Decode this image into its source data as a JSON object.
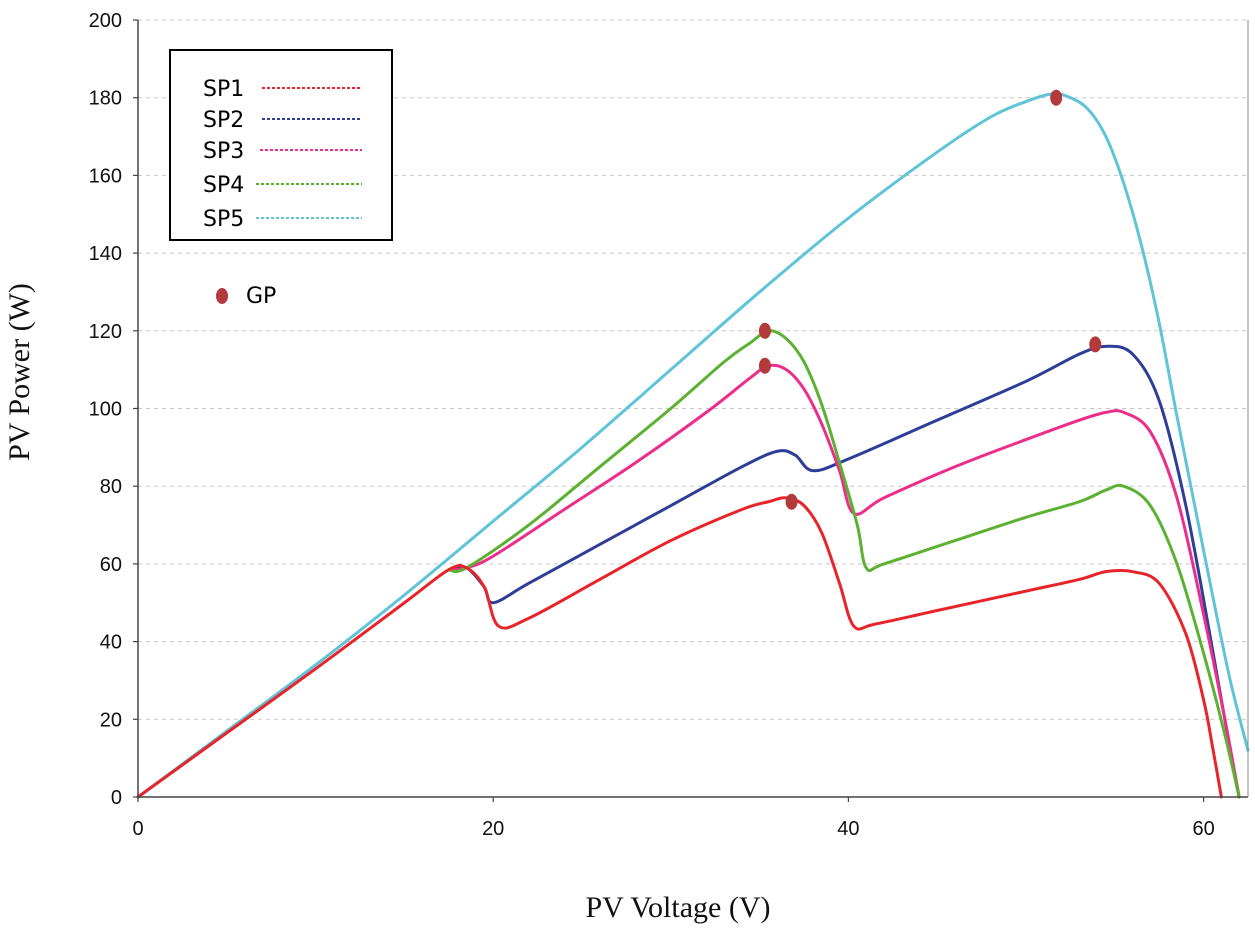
{
  "chart_data": {
    "type": "line",
    "title": "",
    "xlabel": "PV Voltage (V)",
    "ylabel": "PV Power (W)",
    "xlim": [
      0,
      62.5
    ],
    "ylim": [
      0,
      200
    ],
    "xticks": [
      0,
      20,
      40,
      60
    ],
    "yticks": [
      0,
      20,
      40,
      60,
      80,
      100,
      120,
      140,
      160,
      180,
      200
    ],
    "grid": "horizontal dashed",
    "legend_position": "top-left",
    "gp_label": "GP",
    "series": [
      {
        "name": "SP1",
        "color": "#e8242b",
        "x": [
          0,
          5,
          10,
          15,
          17.5,
          18.5,
          19.5,
          20.3,
          22,
          26,
          30,
          34,
          35.5,
          36.5,
          37.5,
          38.5,
          39.5,
          40.3,
          41.5,
          45,
          50,
          53,
          54.5,
          56,
          57.5,
          59,
          60,
          60.5,
          61
        ],
        "y": [
          0,
          16.5,
          33,
          50,
          58.5,
          59,
          54,
          44,
          46,
          56,
          66,
          74,
          76,
          77,
          75,
          68,
          55,
          44,
          44.5,
          48,
          53,
          56,
          58,
          58,
          55,
          42,
          25,
          13,
          0
        ]
      },
      {
        "name": "SP2",
        "color": "#2e3d97",
        "x": [
          17.5,
          18.5,
          19.5,
          20,
          22,
          26,
          30,
          34,
          36,
          37,
          38,
          40,
          45,
          50,
          53,
          54.5,
          56,
          57.5,
          59,
          60.5,
          61.5,
          62
        ],
        "y": [
          58.5,
          59,
          54,
          50,
          55,
          65,
          75,
          85,
          89,
          88,
          84,
          87,
          97,
          107,
          114,
          116,
          114,
          102,
          75,
          38,
          12,
          0
        ]
      },
      {
        "name": "SP3",
        "color": "#ec2d8a",
        "x": [
          17.5,
          18.5,
          20,
          24,
          28,
          32,
          34.5,
          35.5,
          36.5,
          37.5,
          38.5,
          39.5,
          40.3,
          42,
          46,
          50,
          53,
          54.5,
          55.5,
          57,
          58.5,
          60,
          61.2,
          62
        ],
        "y": [
          58.5,
          59,
          62,
          74,
          86,
          99,
          108,
          111,
          110,
          105,
          96,
          84,
          73,
          77,
          85,
          92,
          97,
          99,
          99,
          94,
          77,
          47,
          20,
          0
        ]
      },
      {
        "name": "SP4",
        "color": "#5cb132",
        "x": [
          17.5,
          18.5,
          22,
          26,
          30,
          33,
          34.5,
          35.5,
          36.5,
          37.5,
          38.5,
          39.5,
          40.5,
          41,
          42,
          46,
          50,
          53,
          54.5,
          55.5,
          57,
          58.5,
          60,
          61.2,
          62
        ],
        "y": [
          58.5,
          59,
          70,
          85,
          100,
          112,
          117,
          120,
          118,
          112,
          101,
          86,
          70,
          59,
          60,
          66,
          72,
          76,
          79,
          80,
          75,
          60,
          37,
          16,
          0
        ]
      },
      {
        "name": "SP5",
        "color": "#5fc4d8",
        "x": [
          0,
          5,
          10,
          15,
          20,
          25,
          30,
          35,
          40,
          45,
          48,
          50,
          51.5,
          52.5,
          53.5,
          54.5,
          55.5,
          56.5,
          57.5,
          58.5,
          59.5,
          60.5,
          61.5,
          62.5
        ],
        "y": [
          0,
          17,
          34,
          52,
          71,
          90,
          110,
          130,
          149,
          166,
          175,
          179,
          181,
          180,
          177,
          170,
          158,
          142,
          122,
          98,
          75,
          52,
          30,
          12
        ]
      }
    ],
    "gp_points": [
      {
        "x": 35.3,
        "y": 120
      },
      {
        "x": 35.3,
        "y": 111
      },
      {
        "x": 36.8,
        "y": 76
      },
      {
        "x": 51.7,
        "y": 180
      },
      {
        "x": 53.9,
        "y": 116.5
      }
    ]
  }
}
